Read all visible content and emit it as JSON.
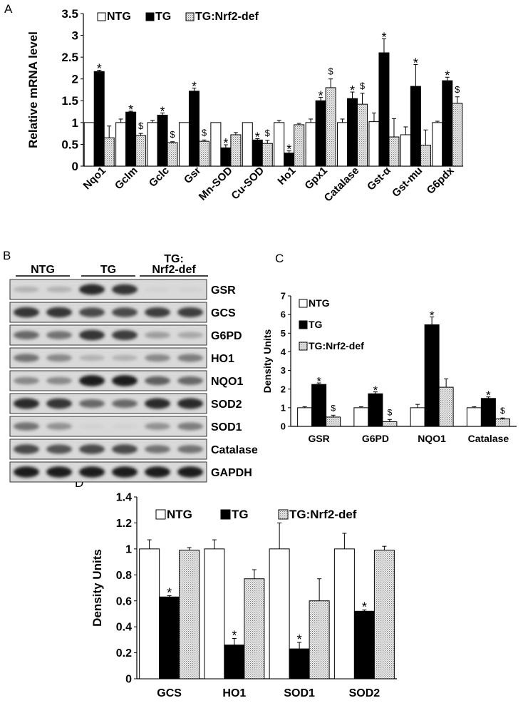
{
  "panel_letters": {
    "a": "A",
    "b": "B",
    "c": "C",
    "d": "D"
  },
  "western_blot": {
    "groups": [
      "NTG",
      "TG",
      "TG:\nNrf2-def"
    ],
    "group_line1": [
      "NTG",
      "TG",
      "TG:"
    ],
    "group_line2": [
      "",
      "",
      "Nrf2-def"
    ],
    "rows": [
      {
        "label": "GSR",
        "intensity": [
          0.25,
          0.25,
          0.9,
          0.85,
          0.1,
          0.1
        ]
      },
      {
        "label": "GCS",
        "intensity": [
          0.85,
          0.85,
          0.75,
          0.75,
          0.8,
          0.8
        ]
      },
      {
        "label": "G6PD",
        "intensity": [
          0.6,
          0.55,
          0.85,
          0.8,
          0.35,
          0.3
        ]
      },
      {
        "label": "HO1",
        "intensity": [
          0.55,
          0.45,
          0.25,
          0.25,
          0.45,
          0.5
        ]
      },
      {
        "label": "NQO1",
        "intensity": [
          0.45,
          0.45,
          0.95,
          0.95,
          0.65,
          0.6
        ]
      },
      {
        "label": "SOD2",
        "intensity": [
          0.9,
          0.85,
          0.6,
          0.6,
          0.9,
          0.9
        ]
      },
      {
        "label": "SOD1",
        "intensity": [
          0.55,
          0.4,
          0.1,
          0.1,
          0.4,
          0.5
        ]
      },
      {
        "label": "Catalase",
        "intensity": [
          0.75,
          0.7,
          0.75,
          0.75,
          0.55,
          0.55
        ]
      },
      {
        "label": "GAPDH",
        "intensity": [
          0.95,
          0.95,
          0.95,
          0.95,
          0.95,
          0.95
        ]
      }
    ]
  },
  "chart_data": [
    {
      "id": "A",
      "type": "bar",
      "ylabel": "Relative mRNA level",
      "xlabel": "",
      "ylim": [
        0,
        3.5
      ],
      "yticks": [
        "0",
        "0.5",
        "1",
        "1.5",
        "2",
        "2.5",
        "3",
        "3.5"
      ],
      "categories": [
        "Nqo1",
        "Gclm",
        "Gclc",
        "Gsr",
        "Mn-SOD",
        "Cu-SOD",
        "Ho1",
        "Gpx1",
        "Catalase",
        "Gst-α",
        "Gst-mu",
        "G6pdx"
      ],
      "legend": [
        "NTG",
        "TG",
        "TG:Nrf2-def"
      ],
      "series": [
        {
          "name": "NTG",
          "fill": "white",
          "values": [
            1.0,
            1.0,
            1.0,
            1.0,
            1.0,
            1.0,
            1.0,
            1.0,
            1.0,
            1.02,
            0.72,
            1.0
          ],
          "errors": [
            0,
            0.08,
            0.05,
            0,
            0,
            0,
            0.05,
            0.08,
            0.08,
            0.2,
            0.18,
            0.03
          ],
          "marks": [
            "",
            "",
            "",
            "",
            "",
            "",
            "",
            "",
            "",
            "",
            "",
            ""
          ]
        },
        {
          "name": "TG",
          "fill": "black",
          "values": [
            2.17,
            1.24,
            1.17,
            1.72,
            0.42,
            0.6,
            0.3,
            1.5,
            1.55,
            2.6,
            1.83,
            1.96
          ],
          "errors": [
            0.03,
            0.02,
            0.05,
            0.07,
            0.07,
            0.03,
            0.05,
            0.08,
            0.15,
            0.32,
            0.5,
            0.08
          ],
          "marks": [
            "*",
            "*",
            "*",
            "*",
            "*",
            "*",
            "*",
            "*",
            "*",
            "*",
            "*",
            "*"
          ]
        },
        {
          "name": "TG:Nrf2-def",
          "fill": "dots",
          "values": [
            0.65,
            0.7,
            0.54,
            0.57,
            0.72,
            0.52,
            0.95,
            1.8,
            1.42,
            0.67,
            0.48,
            1.44
          ],
          "errors": [
            0.27,
            0.05,
            0.02,
            0.03,
            0.05,
            0.07,
            0.03,
            0.2,
            0.25,
            0.42,
            0.35,
            0.15
          ],
          "marks": [
            "",
            "$",
            "$",
            "$",
            "",
            "$",
            "",
            "$",
            "$",
            "",
            "",
            "$"
          ]
        }
      ]
    },
    {
      "id": "C",
      "type": "bar",
      "ylabel": "Density Units",
      "xlabel": "",
      "ylim": [
        0,
        7
      ],
      "yticks": [
        "0",
        "1",
        "2",
        "3",
        "4",
        "5",
        "6",
        "7"
      ],
      "categories": [
        "GSR",
        "G6PD",
        "NQO1",
        "Catalase"
      ],
      "legend": [
        "NTG",
        "TG",
        "TG:Nrf2-def"
      ],
      "series": [
        {
          "name": "NTG",
          "fill": "white",
          "values": [
            1.0,
            1.0,
            1.0,
            1.0
          ],
          "errors": [
            0.05,
            0.05,
            0.18,
            0.05
          ],
          "marks": [
            "",
            "",
            "",
            ""
          ]
        },
        {
          "name": "TG",
          "fill": "black",
          "values": [
            2.25,
            1.75,
            5.45,
            1.5
          ],
          "errors": [
            0.08,
            0.1,
            0.42,
            0.08
          ],
          "marks": [
            "*",
            "*",
            "*",
            "*"
          ]
        },
        {
          "name": "TG:Nrf2-def",
          "fill": "dots",
          "values": [
            0.5,
            0.25,
            2.1,
            0.4
          ],
          "errors": [
            0.1,
            0.12,
            0.45,
            0.05
          ],
          "marks": [
            "$",
            "$",
            "",
            "$"
          ]
        }
      ]
    },
    {
      "id": "D",
      "type": "bar",
      "ylabel": "Density Units",
      "xlabel": "",
      "ylim": [
        0,
        1.4
      ],
      "yticks": [
        "0",
        "0.2",
        "0.4",
        "0.6",
        "0.8",
        "1",
        "1.2",
        "1.4"
      ],
      "categories": [
        "GCS",
        "HO1",
        "SOD1",
        "SOD2"
      ],
      "legend": [
        "NTG",
        "TG",
        "TG:Nrf2-def"
      ],
      "series": [
        {
          "name": "NTG",
          "fill": "white",
          "values": [
            1.0,
            1.0,
            1.0,
            1.0
          ],
          "errors": [
            0.07,
            0.07,
            0.2,
            0.12
          ],
          "marks": [
            "",
            "",
            "",
            ""
          ]
        },
        {
          "name": "TG",
          "fill": "black",
          "values": [
            0.63,
            0.26,
            0.23,
            0.52
          ],
          "errors": [
            0.01,
            0.05,
            0.05,
            0.01
          ],
          "marks": [
            "*",
            "*",
            "*",
            "*"
          ]
        },
        {
          "name": "TG:Nrf2-def",
          "fill": "dots",
          "values": [
            0.99,
            0.77,
            0.6,
            0.99
          ],
          "errors": [
            0.02,
            0.07,
            0.17,
            0.03
          ],
          "marks": [
            "",
            "",
            "",
            ""
          ]
        }
      ]
    }
  ]
}
